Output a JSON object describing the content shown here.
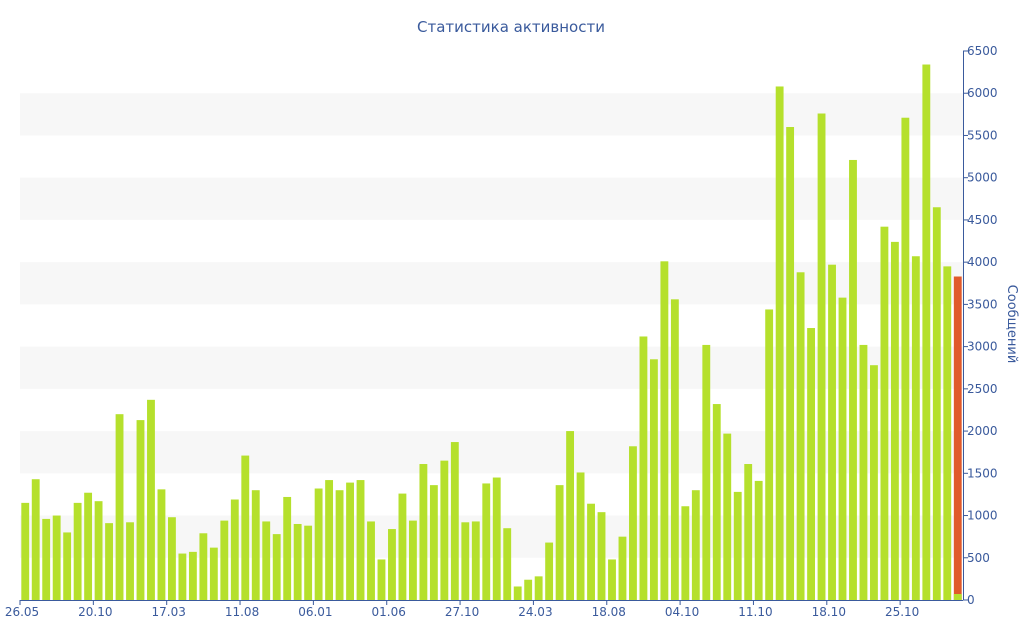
{
  "chart_data": {
    "type": "bar",
    "title": "Статистика активности",
    "ylabel": "Сообщений",
    "ylim": [
      0,
      6500
    ],
    "y_ticks": [
      0,
      500,
      1000,
      1500,
      2000,
      2500,
      3000,
      3500,
      4000,
      4500,
      5000,
      5500,
      6000,
      6500
    ],
    "x_tick_labels": [
      {
        "label": "26.05",
        "index": 0
      },
      {
        "label": "20.10",
        "index": 7
      },
      {
        "label": "17.03",
        "index": 14
      },
      {
        "label": "11.08",
        "index": 21
      },
      {
        "label": "06.01",
        "index": 28
      },
      {
        "label": "01.06",
        "index": 35
      },
      {
        "label": "27.10",
        "index": 42
      },
      {
        "label": "24.03",
        "index": 49
      },
      {
        "label": "18.08",
        "index": 56
      },
      {
        "label": "04.10",
        "index": 63
      },
      {
        "label": "11.10",
        "index": 70
      },
      {
        "label": "18.10",
        "index": 77
      },
      {
        "label": "25.10",
        "index": 84
      }
    ],
    "grid": "horizontal bands",
    "colors": {
      "bar": "#b5e02c",
      "highlight": "#e05a2b",
      "text": "#3a5a9c",
      "band": "#f7f7f7",
      "axis": "#3a5a9c"
    },
    "values": [
      1150,
      1430,
      960,
      1000,
      800,
      1150,
      1270,
      1170,
      910,
      2200,
      920,
      2130,
      2370,
      1310,
      980,
      550,
      570,
      790,
      620,
      940,
      1190,
      1710,
      1300,
      930,
      780,
      1220,
      900,
      880,
      1320,
      1420,
      1300,
      1390,
      1420,
      930,
      480,
      840,
      1260,
      940,
      1610,
      1360,
      1650,
      1870,
      920,
      930,
      1380,
      1450,
      850,
      160,
      240,
      280,
      680,
      1360,
      2000,
      1510,
      1140,
      1040,
      480,
      750,
      1820,
      3120,
      2850,
      4010,
      3560,
      1110,
      1300,
      3020,
      2320,
      1970,
      1280,
      1610,
      1410,
      3440,
      6080,
      5600,
      3880,
      3220,
      5760,
      3970,
      3580,
      5210,
      3020,
      2780,
      4420,
      4240,
      5710,
      4070,
      6340,
      4650,
      3950,
      3830
    ],
    "highlight_index": 89,
    "highlight_value": 3830
  }
}
